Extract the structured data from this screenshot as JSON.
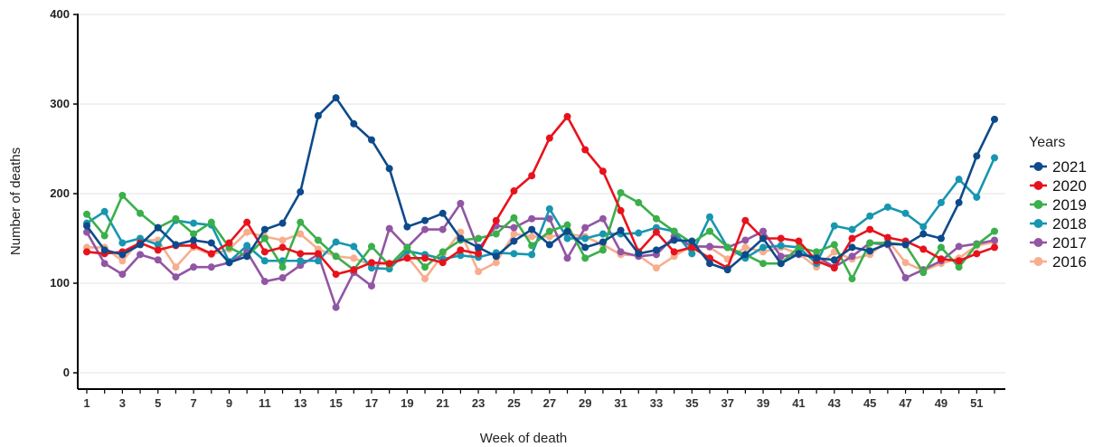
{
  "chart_data": {
    "type": "line",
    "xlabel": "Week of death",
    "ylabel": "Number of deaths",
    "xlim": [
      1,
      52
    ],
    "ylim": [
      0,
      400
    ],
    "x_tick_labels": [
      1,
      3,
      5,
      7,
      9,
      11,
      13,
      15,
      17,
      19,
      21,
      23,
      25,
      27,
      29,
      31,
      33,
      35,
      37,
      39,
      41,
      43,
      45,
      47,
      49,
      51
    ],
    "y_tick_labels": [
      0,
      100,
      200,
      300,
      400
    ],
    "grid": "horizontal-major",
    "legend": {
      "title": "Years",
      "placement": "right"
    },
    "x": [
      1,
      2,
      3,
      4,
      5,
      6,
      7,
      8,
      9,
      10,
      11,
      12,
      13,
      14,
      15,
      16,
      17,
      18,
      19,
      20,
      21,
      22,
      23,
      24,
      25,
      26,
      27,
      28,
      29,
      30,
      31,
      32,
      33,
      34,
      35,
      36,
      37,
      38,
      39,
      40,
      41,
      42,
      43,
      44,
      45,
      46,
      47,
      48,
      49,
      50,
      51,
      52
    ],
    "series": [
      {
        "name": "2016",
        "color": "#F7AE8E",
        "values": [
          140,
          140,
          125,
          148,
          148,
          118,
          140,
          132,
          138,
          157,
          152,
          148,
          155,
          138,
          130,
          128,
          120,
          122,
          130,
          105,
          132,
          157,
          113,
          123,
          155,
          152,
          152,
          155,
          152,
          143,
          132,
          131,
          117,
          130,
          142,
          140,
          127,
          140,
          135,
          140,
          133,
          118,
          135,
          127,
          132,
          148,
          123,
          114,
          122,
          128,
          142,
          146
        ]
      },
      {
        "name": "2017",
        "color": "#9156A4",
        "values": [
          157,
          122,
          110,
          132,
          126,
          107,
          118,
          118,
          123,
          135,
          102,
          106,
          120,
          132,
          73,
          112,
          97,
          161,
          140,
          160,
          160,
          189,
          138,
          164,
          162,
          172,
          172,
          128,
          162,
          172,
          135,
          130,
          132,
          152,
          141,
          141,
          140,
          148,
          158,
          130,
          132,
          130,
          118,
          130,
          145,
          143,
          106,
          115,
          125,
          141,
          144,
          148
        ]
      },
      {
        "name": "2018",
        "color": "#1796B0",
        "values": [
          167,
          180,
          145,
          150,
          143,
          170,
          167,
          165,
          124,
          142,
          125,
          125,
          125,
          125,
          146,
          141,
          117,
          116,
          136,
          132,
          127,
          131,
          129,
          134,
          133,
          132,
          183,
          150,
          150,
          155,
          155,
          156,
          162,
          158,
          133,
          174,
          140,
          128,
          140,
          142,
          140,
          122,
          164,
          160,
          175,
          185,
          178,
          163,
          190,
          216,
          196,
          240
        ]
      },
      {
        "name": "2019",
        "color": "#3AAF4A",
        "values": [
          177,
          153,
          198,
          178,
          162,
          172,
          155,
          168,
          140,
          130,
          150,
          118,
          168,
          148,
          130,
          115,
          141,
          120,
          140,
          118,
          135,
          148,
          150,
          155,
          173,
          142,
          158,
          165,
          128,
          137,
          201,
          190,
          172,
          158,
          145,
          158,
          140,
          132,
          122,
          122,
          140,
          135,
          143,
          105,
          145,
          145,
          143,
          112,
          140,
          118,
          143,
          158
        ]
      },
      {
        "name": "2020",
        "color": "#E8121C",
        "values": [
          135,
          133,
          135,
          145,
          137,
          142,
          142,
          133,
          145,
          168,
          135,
          140,
          133,
          133,
          110,
          115,
          123,
          122,
          128,
          128,
          123,
          137,
          133,
          170,
          203,
          220,
          262,
          286,
          249,
          225,
          181,
          135,
          157,
          135,
          140,
          128,
          117,
          170,
          150,
          150,
          147,
          125,
          117,
          150,
          160,
          151,
          147,
          138,
          127,
          125,
          133,
          140
        ]
      },
      {
        "name": "2021",
        "color": "#0D4A8B",
        "values": [
          164,
          137,
          132,
          143,
          162,
          143,
          148,
          145,
          123,
          130,
          160,
          167,
          202,
          287,
          307,
          278,
          260,
          228,
          163,
          170,
          178,
          150,
          140,
          130,
          147,
          160,
          143,
          158,
          140,
          146,
          159,
          133,
          137,
          148,
          147,
          122,
          115,
          132,
          150,
          122,
          133,
          128,
          126,
          140,
          136,
          144,
          143,
          155,
          150,
          190,
          242,
          283
        ]
      }
    ]
  }
}
